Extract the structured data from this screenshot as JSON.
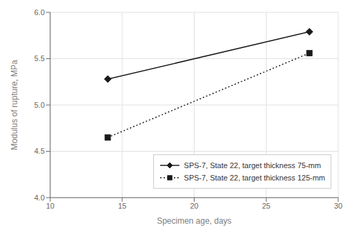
{
  "chart_data": {
    "type": "line",
    "xlabel": "Specimen age, days",
    "ylabel": "Modulus of rupture, MPa",
    "x": [
      14,
      28
    ],
    "xlim": [
      10,
      30
    ],
    "ylim": [
      4.0,
      6.0
    ],
    "xticks": [
      10,
      15,
      20,
      25,
      30
    ],
    "yticks": [
      {
        "value": 4.0,
        "label": "4.0"
      },
      4.5,
      {
        "value": 5.0,
        "label": "5.0"
      },
      5.5,
      {
        "value": 6.0,
        "label": "6.0"
      }
    ],
    "grid": true,
    "legend": "lower right",
    "series": [
      {
        "name": "SPS-7, State 22, target thickness 75-mm",
        "values": [
          5.28,
          5.79
        ],
        "color": "#1a1a1a",
        "marker": "diamond",
        "line_style": "solid"
      },
      {
        "name": "SPS-7, State 22, target thickness 125-mm",
        "values": [
          4.65,
          5.56
        ],
        "color": "#1a1a1a",
        "marker": "square",
        "line_style": "dotted"
      }
    ]
  }
}
